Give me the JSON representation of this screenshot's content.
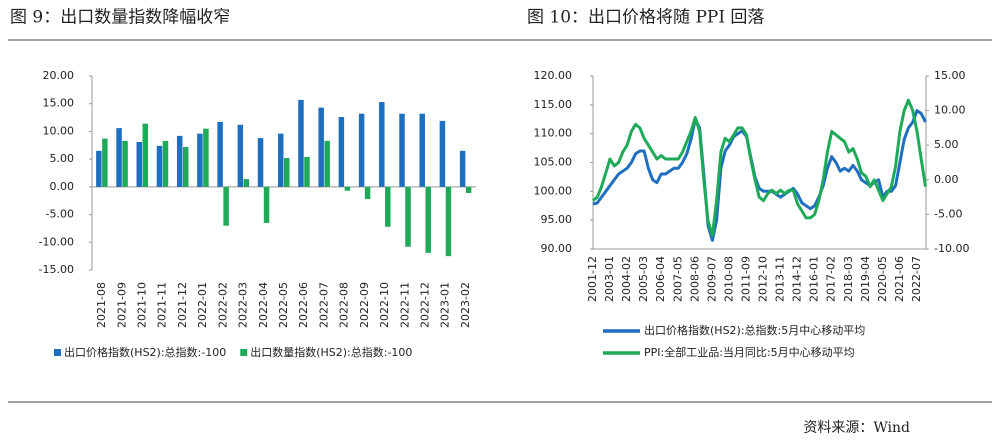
{
  "source": "资料来源：Wind",
  "chart_data": [
    {
      "type": "bar",
      "title": "图 9：出口数量指数降幅收窄",
      "categories": [
        "2021-08",
        "2021-09",
        "2021-10",
        "2021-11",
        "2021-12",
        "2022-01",
        "2022-02",
        "2022-03",
        "2022-04",
        "2022-05",
        "2022-06",
        "2022-07",
        "2022-08",
        "2022-09",
        "2022-10",
        "2022-11",
        "2022-12",
        "2023-01",
        "2023-02"
      ],
      "series": [
        {
          "name": "出口价格指数(HS2):总指数:-100",
          "color": "#1f6fc0",
          "values": [
            6.5,
            10.6,
            8.1,
            7.4,
            9.2,
            9.6,
            11.7,
            11.2,
            8.8,
            9.6,
            15.7,
            14.3,
            12.6,
            13.2,
            15.3,
            13.2,
            13.2,
            11.9,
            6.5
          ]
        },
        {
          "name": "出口数量指数(HS2):总指数:-100",
          "color": "#1faa5a",
          "values": [
            8.7,
            8.3,
            11.4,
            8.3,
            7.2,
            10.5,
            -7.0,
            1.4,
            -6.5,
            5.2,
            5.4,
            8.3,
            -0.7,
            -2.2,
            -7.2,
            -10.8,
            -11.9,
            -12.5,
            -1.1
          ]
        }
      ],
      "ylim": [
        -15,
        20
      ],
      "yticks": [
        {
          "value": 20,
          "label": "20.00"
        },
        {
          "value": 15,
          "label": "15.00"
        },
        {
          "value": 10,
          "label": "10.00"
        },
        {
          "value": 5,
          "label": "5.00"
        },
        {
          "value": 0,
          "label": "0.00"
        },
        {
          "value": -5,
          "label": "-5.00"
        },
        {
          "value": -10,
          "label": "-10.00"
        },
        {
          "value": -15,
          "label": "-15.00"
        }
      ]
    },
    {
      "type": "line",
      "title": "图 10：出口价格将随 PPI 回落",
      "categories": [
        "2001-12",
        null,
        null,
        null,
        "2003-01",
        null,
        null,
        null,
        "2004-02",
        null,
        null,
        null,
        "2005-03",
        null,
        null,
        null,
        "2006-04",
        null,
        null,
        null,
        "2007-05",
        null,
        null,
        null,
        "2008-06",
        null,
        null,
        null,
        "2009-07",
        null,
        null,
        null,
        "2010-08",
        null,
        null,
        null,
        "2011-09",
        null,
        null,
        null,
        "2012-10",
        null,
        null,
        null,
        "2013-11",
        null,
        null,
        null,
        "2014-12",
        null,
        null,
        null,
        "2016-01",
        null,
        null,
        null,
        "2017-02",
        null,
        null,
        null,
        "2018-03",
        null,
        null,
        null,
        "2019-04",
        null,
        null,
        null,
        "2020-05",
        null,
        null,
        null,
        "2021-06",
        null,
        null,
        null,
        "2022-07",
        null,
        null
      ],
      "series": [
        {
          "name": "出口价格指数(HS2):总指数:5月中心移动平均",
          "color": "#1f6fc0",
          "values": [
            97.8,
            98,
            99,
            100,
            101,
            102,
            103,
            103.5,
            104,
            105,
            106.5,
            107,
            107,
            104,
            102,
            101.5,
            103,
            103,
            103.5,
            104,
            104,
            105,
            106.5,
            109,
            112.5,
            111,
            103,
            94,
            91.5,
            95,
            104,
            107,
            108,
            109.5,
            110,
            110.5,
            109.5,
            106,
            102.5,
            100.5,
            100,
            100,
            100,
            99.5,
            99,
            99.5,
            100,
            100.5,
            99.5,
            98,
            97.5,
            97,
            97.5,
            99,
            101,
            104,
            106,
            105,
            103.5,
            104,
            103.5,
            104.5,
            103.5,
            102,
            101.5,
            101,
            101.5,
            102,
            99,
            100,
            100,
            101,
            105,
            109,
            111,
            112,
            114,
            113.5,
            112
          ]
        },
        {
          "name": "PPI:全部工业品:当月同比:5月中心移动平均",
          "color": "#1faa5a",
          "axis": "y2",
          "values": [
            -3,
            -2.5,
            -1,
            1,
            3,
            2,
            2.5,
            4,
            5,
            7,
            8,
            7.5,
            6,
            5,
            4,
            3,
            3.5,
            3,
            3,
            3,
            3,
            4,
            5.5,
            7,
            9,
            7,
            0,
            -6,
            -8,
            -3,
            4,
            6,
            5.5,
            6.5,
            7.5,
            7.5,
            6.5,
            3,
            0,
            -2.5,
            -3,
            -2,
            -1.5,
            -2,
            -1.5,
            -2,
            -1.5,
            -1.5,
            -3.5,
            -4.5,
            -5.5,
            -5.5,
            -5,
            -3,
            0,
            4,
            7,
            6.5,
            6,
            5.5,
            4,
            4.5,
            3,
            1,
            0.5,
            -1,
            0,
            -1.5,
            -3,
            -2,
            -1,
            2,
            7,
            10,
            11.5,
            10,
            7,
            3,
            -1
          ]
        }
      ],
      "ylim": [
        90,
        120
      ],
      "yticks": [
        {
          "value": 120,
          "label": "120.00"
        },
        {
          "value": 115,
          "label": "115.00"
        },
        {
          "value": 110,
          "label": "110.00"
        },
        {
          "value": 105,
          "label": "105.00"
        },
        {
          "value": 100,
          "label": "100.00"
        },
        {
          "value": 95,
          "label": "95.00"
        },
        {
          "value": 90,
          "label": "90.00"
        }
      ],
      "y2lim": [
        -10,
        15
      ],
      "y2ticks": [
        {
          "value": 15,
          "label": "15.00"
        },
        {
          "value": 10,
          "label": "10.00"
        },
        {
          "value": 5,
          "label": "5.00"
        },
        {
          "value": 0,
          "label": "0.00"
        },
        {
          "value": -5,
          "label": "-5.00"
        },
        {
          "value": -10,
          "label": "-10.00"
        }
      ]
    }
  ]
}
